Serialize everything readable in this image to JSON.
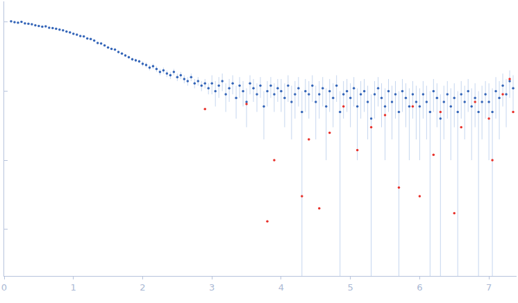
{
  "chart_data": {
    "type": "scatter",
    "log": "y",
    "grid": false,
    "tick_labels": "x",
    "xlim": [
      0,
      7.4
    ],
    "xticks": [
      0,
      1,
      2,
      3,
      4,
      5,
      6,
      7
    ],
    "ylim": [
      0.00021,
      2
    ],
    "yticks": [
      0.001,
      0.01,
      0.1,
      1
    ],
    "series": [
      {
        "color": "#3465b8",
        "marker": "circle",
        "x": [
          0.1,
          0.15,
          0.2,
          0.25,
          0.3,
          0.35,
          0.4,
          0.45,
          0.5,
          0.55,
          0.6,
          0.65,
          0.7,
          0.75,
          0.8,
          0.85,
          0.9,
          0.95,
          1.0,
          1.05,
          1.1,
          1.15,
          1.2,
          1.25,
          1.3,
          1.35,
          1.4,
          1.45,
          1.5,
          1.55,
          1.6,
          1.65,
          1.7,
          1.75,
          1.8,
          1.85,
          1.9,
          1.95,
          2.0,
          2.05,
          2.1,
          2.15,
          2.2,
          2.25,
          2.3,
          2.35,
          2.4,
          2.45,
          2.5,
          2.55,
          2.6,
          2.65,
          2.7,
          2.75,
          2.8,
          2.85,
          2.9,
          2.95,
          3.0,
          3.05,
          3.1,
          3.15,
          3.2,
          3.25,
          3.3,
          3.35,
          3.4,
          3.45,
          3.5,
          3.55,
          3.6,
          3.65,
          3.7,
          3.75,
          3.8,
          3.85,
          3.9,
          3.95,
          4.0,
          4.05,
          4.1,
          4.15,
          4.2,
          4.25,
          4.3,
          4.35,
          4.4,
          4.45,
          4.5,
          4.55,
          4.6,
          4.65,
          4.7,
          4.75,
          4.8,
          4.85,
          4.9,
          4.95,
          5.0,
          5.05,
          5.1,
          5.15,
          5.2,
          5.25,
          5.3,
          5.35,
          5.4,
          5.45,
          5.5,
          5.55,
          5.6,
          5.65,
          5.7,
          5.75,
          5.8,
          5.85,
          5.9,
          5.95,
          6.0,
          6.05,
          6.1,
          6.15,
          6.2,
          6.25,
          6.3,
          6.35,
          6.4,
          6.45,
          6.5,
          6.55,
          6.6,
          6.65,
          6.7,
          6.75,
          6.8,
          6.85,
          6.9,
          6.95,
          7.0,
          7.05,
          7.1,
          7.15,
          7.2,
          7.25,
          7.3,
          7.35
        ],
        "values": [
          1.03,
          1.0,
          0.98,
          1.01,
          0.96,
          0.95,
          0.93,
          0.9,
          0.88,
          0.86,
          0.87,
          0.83,
          0.82,
          0.8,
          0.78,
          0.76,
          0.73,
          0.71,
          0.68,
          0.66,
          0.63,
          0.62,
          0.58,
          0.57,
          0.54,
          0.5,
          0.49,
          0.46,
          0.43,
          0.41,
          0.4,
          0.37,
          0.35,
          0.33,
          0.31,
          0.29,
          0.28,
          0.27,
          0.25,
          0.24,
          0.22,
          0.23,
          0.21,
          0.19,
          0.2,
          0.18,
          0.17,
          0.19,
          0.16,
          0.17,
          0.15,
          0.14,
          0.16,
          0.13,
          0.14,
          0.12,
          0.13,
          0.11,
          0.13,
          0.1,
          0.12,
          0.14,
          0.09,
          0.11,
          0.13,
          0.08,
          0.12,
          0.1,
          0.07,
          0.13,
          0.11,
          0.09,
          0.12,
          0.06,
          0.1,
          0.12,
          0.09,
          0.11,
          0.1,
          0.08,
          0.12,
          0.07,
          0.09,
          0.11,
          0.05,
          0.1,
          0.09,
          0.12,
          0.07,
          0.09,
          0.11,
          0.06,
          0.1,
          0.08,
          0.12,
          0.05,
          0.09,
          0.1,
          0.08,
          0.11,
          0.06,
          0.09,
          0.1,
          0.07,
          0.04,
          0.09,
          0.11,
          0.08,
          0.06,
          0.1,
          0.07,
          0.09,
          0.05,
          0.1,
          0.08,
          0.06,
          0.09,
          0.07,
          0.06,
          0.09,
          0.07,
          0.05,
          0.1,
          0.08,
          0.04,
          0.07,
          0.09,
          0.06,
          0.08,
          0.05,
          0.09,
          0.07,
          0.1,
          0.06,
          0.08,
          0.05,
          0.07,
          0.09,
          0.07,
          0.05,
          0.1,
          0.08,
          0.12,
          0.09,
          0.14,
          0.11
        ],
        "errors": [
          0.02,
          0.02,
          0.02,
          0.02,
          0.02,
          0.02,
          0.02,
          0.02,
          0.02,
          0.02,
          0.02,
          0.02,
          0.02,
          0.02,
          0.02,
          0.02,
          0.02,
          0.02,
          0.015,
          0.015,
          0.015,
          0.015,
          0.015,
          0.015,
          0.015,
          0.015,
          0.015,
          0.015,
          0.015,
          0.015,
          0.015,
          0.015,
          0.015,
          0.015,
          0.015,
          0.015,
          0.015,
          0.015,
          0.02,
          0.02,
          0.02,
          0.02,
          0.02,
          0.02,
          0.02,
          0.02,
          0.02,
          0.02,
          0.02,
          0.02,
          0.02,
          0.02,
          0.02,
          0.02,
          0.02,
          0.02,
          0.02,
          0.02,
          0.04,
          0.04,
          0.04,
          0.04,
          0.04,
          0.04,
          0.04,
          0.04,
          0.04,
          0.04,
          0.04,
          0.04,
          0.04,
          0.04,
          0.04,
          0.04,
          0.04,
          0.04,
          0.04,
          0.04,
          0.05,
          0.05,
          0.05,
          0.05,
          0.05,
          0.05,
          0.05,
          0.05,
          0.05,
          0.05,
          0.05,
          0.05,
          0.05,
          0.05,
          0.05,
          0.05,
          0.05,
          0.05,
          0.05,
          0.05,
          0.05,
          0.05,
          0.05,
          0.05,
          0.05,
          0.05,
          0.05,
          0.05,
          0.05,
          0.05,
          0.05,
          0.05,
          0.05,
          0.05,
          0.05,
          0.05,
          0.05,
          0.05,
          0.05,
          0.05,
          0.05,
          0.05,
          0.05,
          0.05,
          0.05,
          0.05,
          0.05,
          0.05,
          0.05,
          0.05,
          0.05,
          0.05,
          0.05,
          0.05,
          0.05,
          0.05,
          0.05,
          0.05,
          0.05,
          0.05,
          0.06,
          0.06,
          0.06,
          0.06,
          0.06,
          0.06,
          0.06,
          0.06
        ]
      },
      {
        "color": "#e8302a",
        "marker": "circle",
        "x": [
          2.9,
          3.5,
          3.8,
          3.9,
          4.3,
          4.4,
          4.55,
          4.7,
          4.9,
          5.1,
          5.3,
          5.5,
          5.7,
          5.9,
          6.0,
          6.2,
          6.3,
          6.5,
          6.6,
          6.8,
          7.0,
          7.05,
          7.2,
          7.3,
          7.35
        ],
        "values": [
          0.055,
          0.065,
          0.0013,
          0.01,
          0.003,
          0.02,
          0.002,
          0.025,
          0.06,
          0.014,
          0.03,
          0.045,
          0.004,
          0.06,
          0.003,
          0.012,
          0.05,
          0.0017,
          0.03,
          0.07,
          0.04,
          0.01,
          0.09,
          0.15,
          0.05
        ]
      }
    ]
  }
}
